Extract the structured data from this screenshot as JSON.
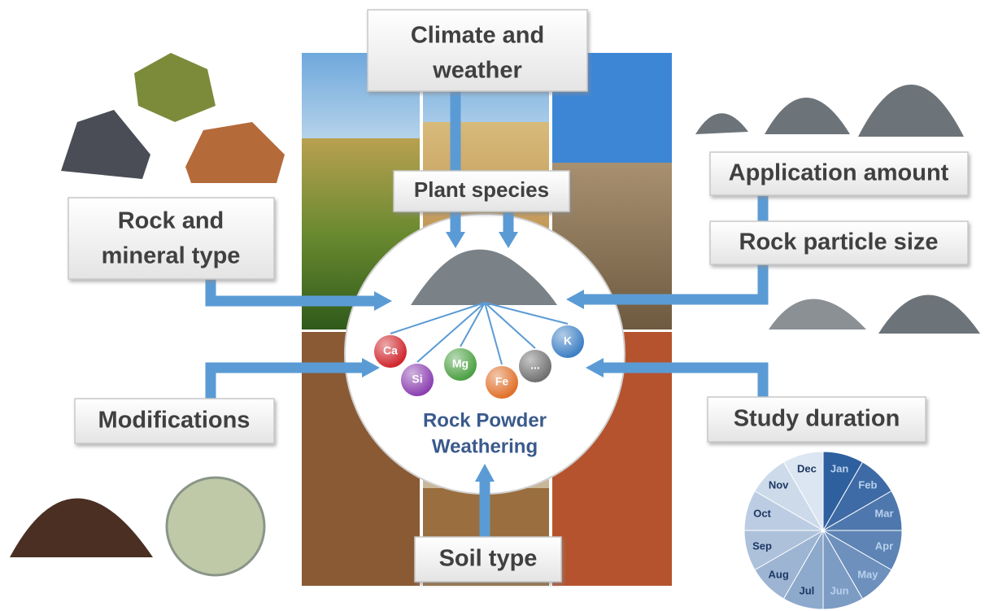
{
  "factors": {
    "climate": [
      "Climate and",
      "weather"
    ],
    "plant": "Plant species",
    "rock": [
      "Rock and",
      "mineral type"
    ],
    "amount": "Application amount",
    "size": "Rock particle size",
    "modifications": "Modifications",
    "duration": "Study duration",
    "soil": "Soil type"
  },
  "center": {
    "title": [
      "Rock Powder",
      "Weathering"
    ]
  },
  "elements": [
    "Ca",
    "Si",
    "Mg",
    "Fe",
    "...",
    "K"
  ],
  "months": [
    "Jan",
    "Feb",
    "Mar",
    "Apr",
    "May",
    "Jun",
    "Jul",
    "Aug",
    "Sep",
    "Oct",
    "Nov",
    "Dec"
  ]
}
